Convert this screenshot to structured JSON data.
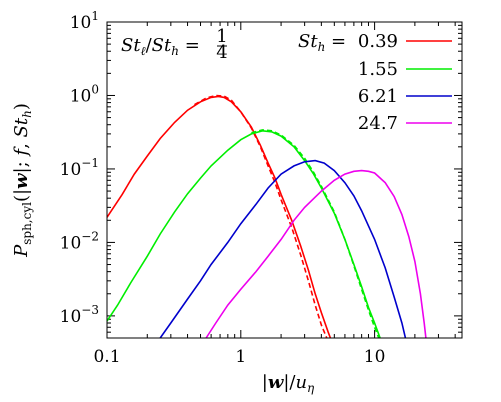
{
  "chart_data": {
    "type": "line",
    "xlabel": "|w|/u_η",
    "ylabel": "P_sph,cyl(|w|; f, St_h)",
    "x_scale": "log",
    "y_scale": "log",
    "xlim": [
      0.1,
      45
    ],
    "ylim": [
      0.0005,
      10
    ],
    "x_ticks": [
      {
        "value": 0.1,
        "label": "0.1"
      },
      {
        "value": 1,
        "label": "1"
      },
      {
        "value": 10,
        "label": "10"
      }
    ],
    "y_ticks": [
      {
        "value": 10,
        "mant": "10",
        "exp": "1"
      },
      {
        "value": 1,
        "mant": "10",
        "exp": "0"
      },
      {
        "value": 0.1,
        "mant": "10",
        "exp": "−1"
      },
      {
        "value": 0.01,
        "mant": "10",
        "exp": "−2"
      },
      {
        "value": 0.001,
        "mant": "10",
        "exp": "−3"
      }
    ],
    "annotation": "St_ℓ/St_h = 1/4",
    "legend_title": "St_h =",
    "legend_position": "top-right",
    "series": [
      {
        "name": "0.39",
        "color": "#ff0000",
        "solid": [
          [
            0.1,
            0.022
          ],
          [
            0.13,
            0.045
          ],
          [
            0.16,
            0.085
          ],
          [
            0.2,
            0.15
          ],
          [
            0.25,
            0.26
          ],
          [
            0.32,
            0.43
          ],
          [
            0.4,
            0.63
          ],
          [
            0.5,
            0.82
          ],
          [
            0.6,
            0.94
          ],
          [
            0.68,
            0.97
          ],
          [
            0.75,
            0.94
          ],
          [
            0.85,
            0.82
          ],
          [
            1.0,
            0.6
          ],
          [
            1.2,
            0.37
          ],
          [
            1.4,
            0.21
          ],
          [
            1.6,
            0.12
          ],
          [
            1.8,
            0.075
          ],
          [
            2.0,
            0.045
          ],
          [
            2.4,
            0.02
          ],
          [
            2.8,
            0.009
          ],
          [
            3.2,
            0.0042
          ],
          [
            3.6,
            0.002
          ],
          [
            4.0,
            0.0011
          ],
          [
            4.5,
            0.0006
          ],
          [
            4.9,
            0.0004
          ]
        ],
        "dashed": [
          [
            0.45,
            0.75
          ],
          [
            0.55,
            0.92
          ],
          [
            0.65,
            1.0
          ],
          [
            0.75,
            0.98
          ],
          [
            0.85,
            0.86
          ],
          [
            1.0,
            0.6
          ],
          [
            1.2,
            0.36
          ],
          [
            1.4,
            0.2
          ],
          [
            1.6,
            0.11
          ],
          [
            1.8,
            0.065
          ],
          [
            2.0,
            0.038
          ],
          [
            2.4,
            0.016
          ],
          [
            2.8,
            0.0068
          ],
          [
            3.2,
            0.003
          ],
          [
            3.6,
            0.0014
          ],
          [
            4.0,
            0.00075
          ],
          [
            4.5,
            0.00045
          ]
        ]
      },
      {
        "name": "1.55",
        "color": "#00ee00",
        "solid": [
          [
            0.1,
            0.00085
          ],
          [
            0.12,
            0.0014
          ],
          [
            0.15,
            0.0028
          ],
          [
            0.2,
            0.0065
          ],
          [
            0.25,
            0.013
          ],
          [
            0.32,
            0.026
          ],
          [
            0.4,
            0.046
          ],
          [
            0.5,
            0.075
          ],
          [
            0.6,
            0.11
          ],
          [
            0.8,
            0.18
          ],
          [
            1.0,
            0.25
          ],
          [
            1.2,
            0.3
          ],
          [
            1.45,
            0.33
          ],
          [
            1.7,
            0.32
          ],
          [
            2.0,
            0.28
          ],
          [
            2.5,
            0.2
          ],
          [
            3.0,
            0.13
          ],
          [
            3.5,
            0.085
          ],
          [
            4.0,
            0.055
          ],
          [
            5.0,
            0.025
          ],
          [
            6.0,
            0.011
          ],
          [
            7.0,
            0.005
          ],
          [
            8.0,
            0.0025
          ],
          [
            9.0,
            0.0013
          ],
          [
            10.0,
            0.0008
          ],
          [
            11.0,
            0.0005
          ],
          [
            12.0,
            0.00035
          ]
        ],
        "dashed": [
          [
            1.2,
            0.31
          ],
          [
            1.45,
            0.34
          ],
          [
            1.7,
            0.33
          ],
          [
            2.0,
            0.29
          ],
          [
            2.5,
            0.21
          ],
          [
            3.0,
            0.14
          ],
          [
            3.5,
            0.09
          ],
          [
            4.0,
            0.058
          ],
          [
            5.0,
            0.026
          ],
          [
            6.0,
            0.011
          ],
          [
            7.0,
            0.0048
          ],
          [
            8.0,
            0.0023
          ],
          [
            9.0,
            0.0012
          ],
          [
            10.0,
            0.0007
          ],
          [
            11.0,
            0.00045
          ]
        ]
      },
      {
        "name": "6.21",
        "color": "#0000cc",
        "solid": [
          [
            0.25,
            0.0005
          ],
          [
            0.3,
            0.0008
          ],
          [
            0.4,
            0.0017
          ],
          [
            0.5,
            0.003
          ],
          [
            0.6,
            0.005
          ],
          [
            0.8,
            0.01
          ],
          [
            1.0,
            0.018
          ],
          [
            1.3,
            0.033
          ],
          [
            1.6,
            0.055
          ],
          [
            2.0,
            0.085
          ],
          [
            2.5,
            0.11
          ],
          [
            3.0,
            0.125
          ],
          [
            3.6,
            0.13
          ],
          [
            4.2,
            0.12
          ],
          [
            5.0,
            0.095
          ],
          [
            6.0,
            0.065
          ],
          [
            7.0,
            0.043
          ],
          [
            8.0,
            0.027
          ],
          [
            10.0,
            0.011
          ],
          [
            12.0,
            0.0045
          ],
          [
            14.0,
            0.0018
          ],
          [
            16.0,
            0.0008
          ],
          [
            17.5,
            0.0004
          ]
        ]
      },
      {
        "name": "24.7",
        "color": "#ee00ee",
        "solid": [
          [
            0.55,
            0.0005
          ],
          [
            0.65,
            0.0008
          ],
          [
            0.8,
            0.0014
          ],
          [
            1.0,
            0.0023
          ],
          [
            1.3,
            0.004
          ],
          [
            1.6,
            0.0065
          ],
          [
            2.0,
            0.011
          ],
          [
            2.5,
            0.02
          ],
          [
            3.0,
            0.03
          ],
          [
            4.0,
            0.05
          ],
          [
            5.0,
            0.07
          ],
          [
            6.0,
            0.085
          ],
          [
            7.0,
            0.093
          ],
          [
            8.0,
            0.095
          ],
          [
            9.0,
            0.093
          ],
          [
            10.0,
            0.088
          ],
          [
            12.0,
            0.065
          ],
          [
            14.0,
            0.042
          ],
          [
            16.0,
            0.024
          ],
          [
            18.0,
            0.012
          ],
          [
            20.0,
            0.0055
          ],
          [
            22.0,
            0.002
          ],
          [
            23.5,
            0.0008
          ],
          [
            24.5,
            0.0004
          ]
        ]
      }
    ]
  }
}
